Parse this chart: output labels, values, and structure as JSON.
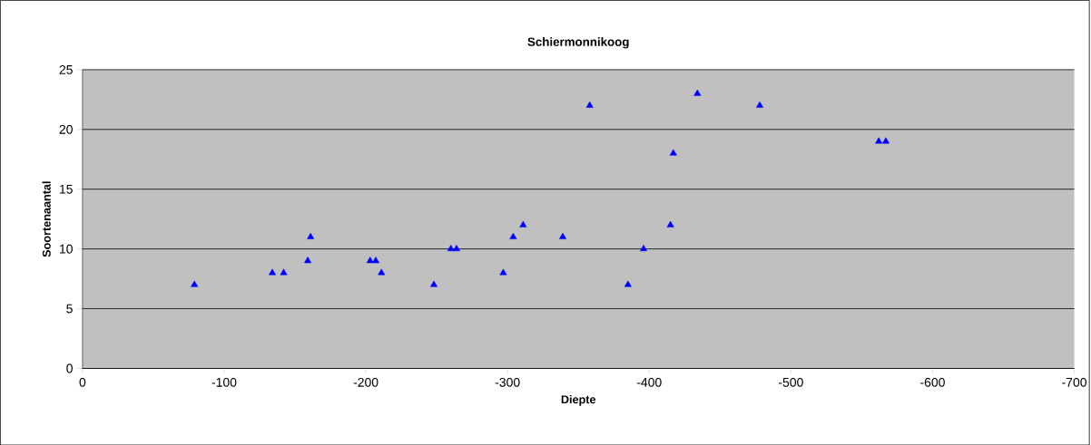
{
  "chart_data": {
    "type": "scatter",
    "title": "Schiermonnikoog",
    "xlabel": "Diepte",
    "ylabel": "Soortenaantal",
    "x": [
      -79,
      -134,
      -142,
      -159,
      -161,
      -203,
      -207,
      -211,
      -248,
      -260,
      -264,
      -297,
      -304,
      -311,
      -339,
      -358,
      -385,
      -396,
      -415,
      -417,
      -434,
      -478,
      -562,
      -567
    ],
    "values": [
      7,
      8,
      8,
      9,
      11,
      9,
      9,
      8,
      7,
      10,
      10,
      8,
      11,
      12,
      11,
      22,
      7,
      10,
      12,
      18,
      23,
      22,
      19,
      19
    ],
    "color": "#0000ff",
    "marker": "triangle",
    "xlim": [
      0,
      -700
    ],
    "xticks": [
      0,
      -100,
      -200,
      -300,
      -400,
      -500,
      -600,
      -700
    ],
    "ylim": [
      0,
      25
    ],
    "yticks": [
      0,
      5,
      10,
      15,
      20,
      25
    ],
    "grid": "y"
  }
}
